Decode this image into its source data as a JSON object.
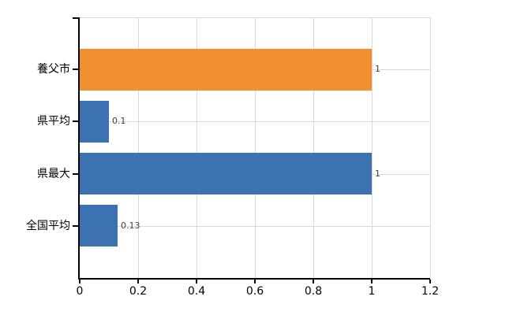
{
  "chart_data": {
    "type": "bar",
    "orientation": "horizontal",
    "title": "",
    "xlabel": "",
    "ylabel": "",
    "categories": [
      "養父市",
      "県平均",
      "県最大",
      "全国平均"
    ],
    "values": [
      1,
      0.1,
      1,
      0.13
    ],
    "value_labels": [
      "1",
      "0.1",
      "1",
      "0.13"
    ],
    "bar_colors": [
      "#f0902f",
      "#3c72b2",
      "#3c72b2",
      "#3c72b2"
    ],
    "xlim": [
      0,
      1.2
    ],
    "xticks": [
      0,
      0.2,
      0.4,
      0.6,
      0.8,
      1,
      1.2
    ],
    "xtick_labels": [
      "0",
      "0.2",
      "0.4",
      "0.6",
      "0.8",
      "1",
      "1.2"
    ],
    "grid": true,
    "legend": "none"
  },
  "colors": {
    "accent_orange": "#f0902f",
    "accent_blue": "#3c72b2",
    "gridline": "#d9d9d9",
    "axis": "#000000",
    "value_label_text": "#404040"
  }
}
